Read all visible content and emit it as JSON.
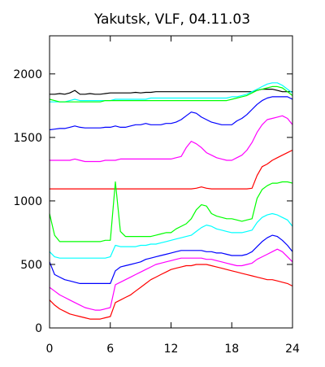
{
  "chart_data": {
    "type": "line",
    "title": "Yakutsk, VLF, 04.11.03",
    "xlabel": "",
    "ylabel": "",
    "xlim": [
      0,
      24
    ],
    "ylim": [
      0,
      2300
    ],
    "x_ticks": [
      0,
      6,
      12,
      18,
      24
    ],
    "y_ticks": [
      0,
      500,
      1000,
      1500,
      2000
    ],
    "grid": false,
    "legend": "none",
    "x": [
      0,
      0.5,
      1,
      1.5,
      2,
      2.5,
      3,
      3.5,
      4,
      4.5,
      5,
      5.5,
      6,
      6.5,
      7,
      7.5,
      8,
      8.5,
      9,
      9.5,
      10,
      10.5,
      11,
      11.5,
      12,
      12.5,
      13,
      13.5,
      14,
      14.5,
      15,
      15.5,
      16,
      16.5,
      17,
      17.5,
      18,
      18.5,
      19,
      19.5,
      20,
      20.5,
      21,
      21.5,
      22,
      22.5,
      23,
      23.5,
      24
    ],
    "series": [
      {
        "color": "#000000",
        "values": [
          1840,
          1840,
          1845,
          1840,
          1850,
          1870,
          1840,
          1840,
          1845,
          1840,
          1840,
          1845,
          1850,
          1850,
          1850,
          1850,
          1850,
          1855,
          1850,
          1855,
          1855,
          1860,
          1860,
          1860,
          1860,
          1860,
          1860,
          1860,
          1860,
          1860,
          1860,
          1860,
          1860,
          1860,
          1860,
          1860,
          1860,
          1860,
          1860,
          1860,
          1860,
          1870,
          1880,
          1880,
          1880,
          1870,
          1860,
          1860,
          1860
        ]
      },
      {
        "color": "#00ffff",
        "values": [
          1780,
          1780,
          1780,
          1780,
          1790,
          1800,
          1790,
          1790,
          1790,
          1790,
          1790,
          1790,
          1790,
          1800,
          1800,
          1800,
          1800,
          1800,
          1800,
          1800,
          1810,
          1810,
          1810,
          1810,
          1810,
          1810,
          1810,
          1810,
          1810,
          1810,
          1810,
          1810,
          1810,
          1810,
          1810,
          1810,
          1820,
          1820,
          1830,
          1840,
          1860,
          1880,
          1900,
          1920,
          1930,
          1930,
          1910,
          1880,
          1850
        ]
      },
      {
        "color": "#00ff00",
        "values": [
          1800,
          1790,
          1780,
          1780,
          1780,
          1780,
          1780,
          1780,
          1780,
          1780,
          1780,
          1790,
          1790,
          1790,
          1790,
          1790,
          1790,
          1790,
          1790,
          1790,
          1790,
          1790,
          1790,
          1790,
          1790,
          1790,
          1790,
          1790,
          1790,
          1790,
          1790,
          1790,
          1790,
          1790,
          1790,
          1790,
          1800,
          1810,
          1820,
          1830,
          1850,
          1870,
          1880,
          1890,
          1900,
          1900,
          1890,
          1860,
          1830
        ]
      },
      {
        "color": "#0000ff",
        "values": [
          1560,
          1565,
          1570,
          1570,
          1580,
          1590,
          1580,
          1575,
          1575,
          1575,
          1575,
          1580,
          1580,
          1590,
          1580,
          1580,
          1590,
          1600,
          1600,
          1610,
          1600,
          1600,
          1600,
          1610,
          1610,
          1620,
          1640,
          1670,
          1700,
          1690,
          1660,
          1640,
          1620,
          1610,
          1600,
          1600,
          1600,
          1630,
          1650,
          1680,
          1720,
          1760,
          1790,
          1810,
          1820,
          1820,
          1820,
          1820,
          1800
        ]
      },
      {
        "color": "#ff00ff",
        "values": [
          1320,
          1320,
          1320,
          1320,
          1320,
          1330,
          1320,
          1310,
          1310,
          1310,
          1310,
          1320,
          1320,
          1320,
          1330,
          1330,
          1330,
          1330,
          1330,
          1330,
          1330,
          1330,
          1330,
          1330,
          1330,
          1340,
          1350,
          1420,
          1470,
          1450,
          1420,
          1380,
          1360,
          1340,
          1330,
          1320,
          1320,
          1340,
          1360,
          1400,
          1460,
          1540,
          1600,
          1640,
          1650,
          1660,
          1670,
          1650,
          1600
        ]
      },
      {
        "color": "#ff0000",
        "values": [
          1095,
          1095,
          1095,
          1095,
          1095,
          1095,
          1095,
          1095,
          1095,
          1095,
          1095,
          1095,
          1095,
          1095,
          1095,
          1095,
          1095,
          1095,
          1095,
          1095,
          1095,
          1095,
          1095,
          1095,
          1095,
          1095,
          1095,
          1095,
          1095,
          1100,
          1110,
          1100,
          1095,
          1095,
          1095,
          1095,
          1095,
          1095,
          1095,
          1095,
          1100,
          1200,
          1270,
          1290,
          1320,
          1340,
          1360,
          1380,
          1400
        ]
      },
      {
        "color": "#00ff00",
        "values": [
          900,
          730,
          680,
          680,
          680,
          680,
          680,
          680,
          680,
          680,
          680,
          690,
          690,
          1150,
          760,
          720,
          720,
          720,
          720,
          720,
          720,
          730,
          740,
          750,
          750,
          780,
          800,
          820,
          860,
          930,
          970,
          960,
          900,
          880,
          870,
          860,
          860,
          850,
          840,
          850,
          860,
          1020,
          1090,
          1120,
          1140,
          1140,
          1150,
          1150,
          1140
        ]
      },
      {
        "color": "#00ffff",
        "values": [
          600,
          560,
          550,
          550,
          550,
          550,
          550,
          550,
          550,
          550,
          550,
          550,
          560,
          650,
          640,
          640,
          640,
          640,
          650,
          650,
          660,
          660,
          670,
          680,
          690,
          700,
          710,
          720,
          730,
          760,
          790,
          810,
          800,
          780,
          770,
          760,
          750,
          750,
          750,
          760,
          770,
          830,
          870,
          890,
          900,
          890,
          870,
          850,
          800
        ]
      },
      {
        "color": "#0000ff",
        "values": [
          520,
          420,
          400,
          380,
          370,
          360,
          350,
          350,
          350,
          350,
          350,
          350,
          350,
          450,
          480,
          490,
          500,
          510,
          520,
          540,
          550,
          560,
          570,
          580,
          590,
          600,
          610,
          610,
          610,
          610,
          610,
          600,
          600,
          590,
          590,
          580,
          570,
          570,
          570,
          580,
          600,
          640,
          680,
          710,
          730,
          720,
          690,
          650,
          600
        ]
      },
      {
        "color": "#ff00ff",
        "values": [
          320,
          290,
          260,
          240,
          220,
          200,
          180,
          160,
          150,
          140,
          140,
          150,
          160,
          340,
          360,
          380,
          400,
          420,
          440,
          460,
          480,
          500,
          510,
          520,
          530,
          540,
          550,
          550,
          550,
          550,
          550,
          540,
          540,
          530,
          520,
          510,
          500,
          490,
          490,
          500,
          510,
          540,
          560,
          580,
          600,
          620,
          600,
          560,
          520
        ]
      },
      {
        "color": "#ff0000",
        "values": [
          220,
          180,
          150,
          130,
          110,
          100,
          90,
          80,
          70,
          70,
          70,
          80,
          90,
          200,
          220,
          240,
          260,
          290,
          320,
          350,
          380,
          400,
          420,
          440,
          460,
          470,
          480,
          490,
          490,
          500,
          500,
          500,
          490,
          480,
          470,
          460,
          450,
          440,
          430,
          420,
          410,
          400,
          390,
          380,
          380,
          370,
          360,
          350,
          330
        ]
      }
    ]
  }
}
